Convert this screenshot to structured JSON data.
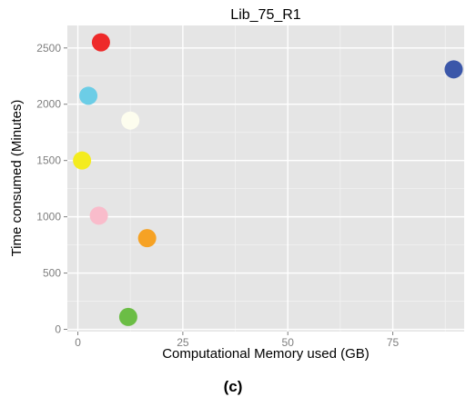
{
  "chart_data": {
    "type": "scatter",
    "title": "Lib_75_R1",
    "xlabel": "Computational Memory used (GB)",
    "ylabel": "Time consumed (Minutes)",
    "caption": "(c)",
    "xlim": [
      -2.5,
      92
    ],
    "ylim": [
      -20,
      2700
    ],
    "x_ticks": [
      0,
      25,
      50,
      75
    ],
    "y_ticks": [
      0,
      500,
      1000,
      1500,
      2000,
      2500
    ],
    "grid": true,
    "legend": "none",
    "colors": {
      "panel_background": "#e5e5e5",
      "grid_major": "#ffffff",
      "grid_minor": "#f2f2f2"
    },
    "points": [
      {
        "x": 5.5,
        "y": 2550,
        "color": "#ee2a2a"
      },
      {
        "x": 89.5,
        "y": 2310,
        "color": "#3b57a9"
      },
      {
        "x": 2.5,
        "y": 2075,
        "color": "#6ccde6"
      },
      {
        "x": 12.5,
        "y": 1855,
        "color": "#fdfdee"
      },
      {
        "x": 1.0,
        "y": 1500,
        "color": "#f4ec1e"
      },
      {
        "x": 5.0,
        "y": 1010,
        "color": "#f9bccb"
      },
      {
        "x": 16.5,
        "y": 810,
        "color": "#f6a224"
      },
      {
        "x": 12.0,
        "y": 110,
        "color": "#6bbd45"
      }
    ]
  }
}
